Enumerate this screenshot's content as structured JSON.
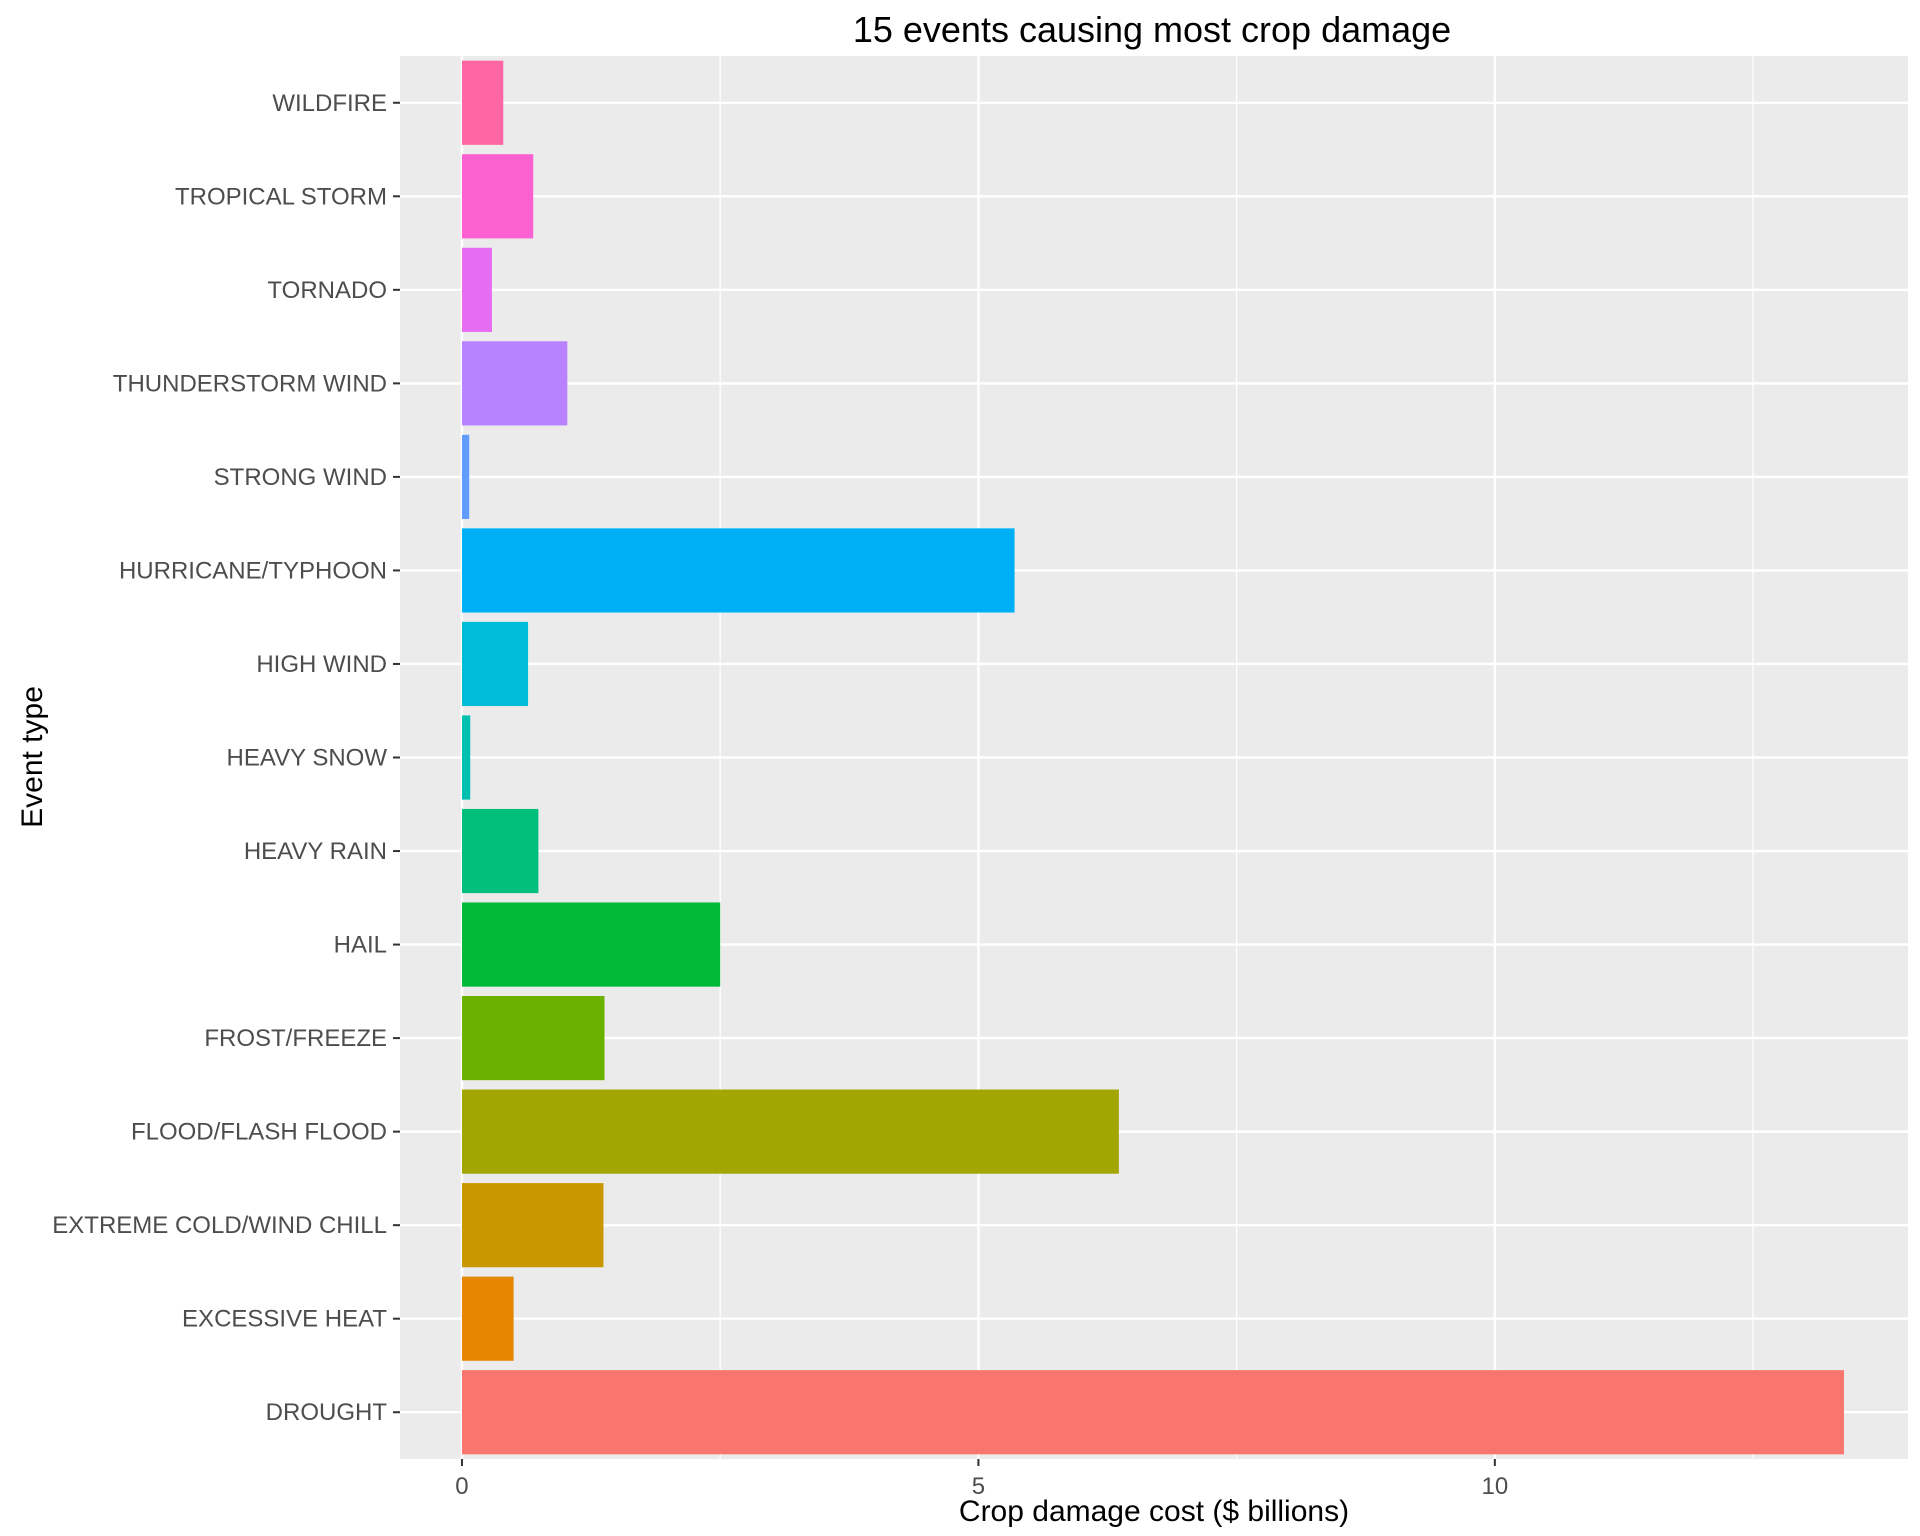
{
  "chart_data": {
    "type": "bar",
    "orientation": "horizontal",
    "title": "15 events causing most crop damage",
    "xlabel": "Crop damage cost ($ billions)",
    "ylabel": "Event type",
    "xlim": [
      -0.6,
      14.0
    ],
    "x_ticks": [
      0,
      5,
      10
    ],
    "grid": true,
    "legend": "none",
    "categories": [
      "DROUGHT",
      "EXCESSIVE HEAT",
      "EXTREME COLD/WIND CHILL",
      "FLOOD/FLASH FLOOD",
      "FROST/FREEZE",
      "HAIL",
      "HEAVY RAIN",
      "HEAVY SNOW",
      "HIGH WIND",
      "HURRICANE/TYPHOON",
      "STRONG WIND",
      "THUNDERSTORM WIND",
      "TORNADO",
      "TROPICAL STORM",
      "WILDFIRE"
    ],
    "values": [
      13.38,
      0.5,
      1.37,
      6.36,
      1.38,
      2.5,
      0.74,
      0.08,
      0.64,
      5.35,
      0.07,
      1.02,
      0.29,
      0.69,
      0.4
    ],
    "colors": [
      "#F8766D",
      "#E58700",
      "#C99800",
      "#A3A500",
      "#6BB100",
      "#00BA38",
      "#00BF7D",
      "#00C0AF",
      "#00BCD8",
      "#00B0F6",
      "#619CFF",
      "#B983FF",
      "#E76BF3",
      "#FD61D1",
      "#FF67A4"
    ]
  }
}
